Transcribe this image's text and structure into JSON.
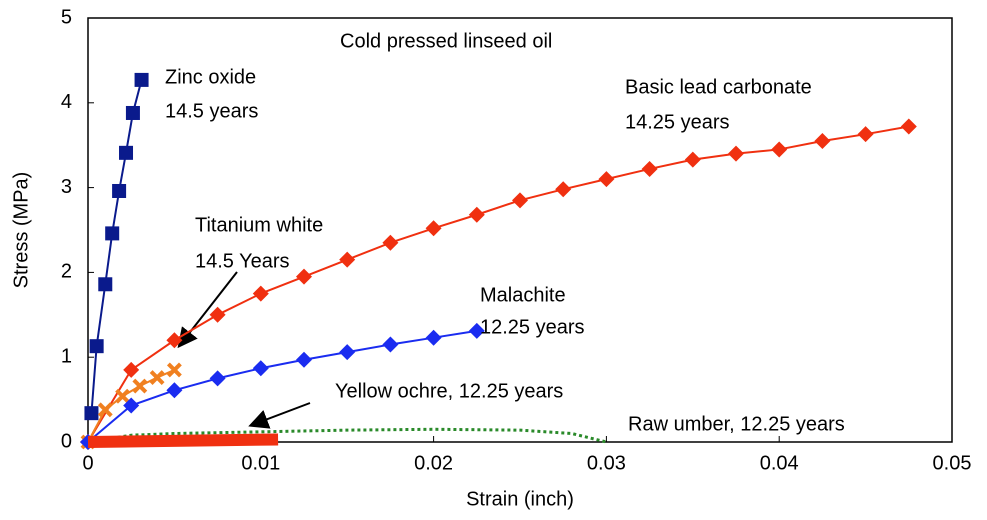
{
  "chart_data": {
    "type": "line",
    "title": "Cold pressed linseed oil",
    "x_label": "Strain (inch)",
    "y_label": "Stress (MPa)",
    "xlim": [
      0,
      0.05
    ],
    "ylim": [
      0,
      5
    ],
    "xticks": [
      0,
      0.01,
      0.02,
      0.03,
      0.04,
      0.05
    ],
    "yticks": [
      0,
      1,
      2,
      3,
      4,
      5
    ],
    "series": [
      {
        "name": "Zinc oxide",
        "annotation": "14.5 years",
        "color": "#0a1a8c",
        "marker": "square",
        "x": [
          0.0002,
          0.0005,
          0.001,
          0.0014,
          0.0018,
          0.0022,
          0.0026,
          0.0031
        ],
        "values": [
          0.34,
          1.13,
          1.86,
          2.46,
          2.96,
          3.41,
          3.88,
          4.27
        ]
      },
      {
        "name": "Basic lead carbonate",
        "annotation": "14.25 years",
        "color": "#f03010",
        "marker": "diamond",
        "x": [
          0,
          0.0025,
          0.005,
          0.0075,
          0.01,
          0.0125,
          0.015,
          0.0175,
          0.02,
          0.0225,
          0.025,
          0.0275,
          0.03,
          0.0325,
          0.035,
          0.0375,
          0.04,
          0.0425,
          0.045,
          0.0475
        ],
        "values": [
          0,
          0.85,
          1.2,
          1.5,
          1.75,
          1.95,
          2.15,
          2.35,
          2.52,
          2.68,
          2.85,
          2.98,
          3.1,
          3.22,
          3.33,
          3.4,
          3.45,
          3.55,
          3.63,
          3.72
        ]
      },
      {
        "name": "Titanium white",
        "annotation": "14.5 Years",
        "color": "#f08020",
        "marker": "cross",
        "x": [
          0,
          0.001,
          0.002,
          0.003,
          0.004,
          0.005
        ],
        "values": [
          0,
          0.38,
          0.54,
          0.66,
          0.76,
          0.85
        ]
      },
      {
        "name": "Malachite",
        "annotation": "12.25 years",
        "color": "#1a2cf0",
        "marker": "diamond",
        "x": [
          0,
          0.0025,
          0.005,
          0.0075,
          0.01,
          0.0125,
          0.015,
          0.0175,
          0.02,
          0.0225
        ],
        "values": [
          0,
          0.43,
          0.61,
          0.75,
          0.87,
          0.97,
          1.06,
          1.15,
          1.23,
          1.31
        ]
      },
      {
        "name": "Yellow ochre, 12.25 years",
        "color": "#2a8a2a",
        "marker": "none",
        "dashed": true,
        "x": [
          0,
          0.0025,
          0.005,
          0.01,
          0.015,
          0.02,
          0.025,
          0.028,
          0.03
        ],
        "values": [
          0,
          0.08,
          0.1,
          0.12,
          0.14,
          0.15,
          0.14,
          0.1,
          0
        ]
      },
      {
        "name": "Raw umber, 12.25 years",
        "color": "#f03010",
        "marker": "none",
        "thick": true,
        "x": [
          0,
          0.011
        ],
        "values": [
          0,
          0.03
        ]
      }
    ]
  }
}
